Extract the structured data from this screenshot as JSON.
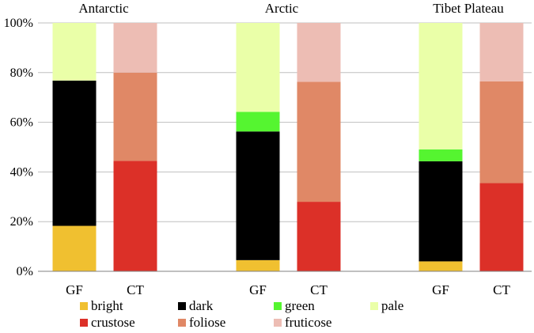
{
  "chart_data": {
    "type": "bar",
    "stacked": true,
    "normalized": true,
    "ylim": [
      0,
      100
    ],
    "yticks": [
      0,
      20,
      40,
      60,
      80,
      100
    ],
    "ytick_suffix": "%",
    "grid": true,
    "legend_position": "bottom",
    "groups": [
      {
        "title": "Antarctic",
        "bars": [
          {
            "label": "GF",
            "segments": [
              {
                "series": "bright",
                "value": 18.3
              },
              {
                "series": "dark",
                "value": 58.5
              },
              {
                "series": "green",
                "value": 0
              },
              {
                "series": "pale",
                "value": 23.2
              }
            ]
          },
          {
            "label": "CT",
            "segments": [
              {
                "series": "crustose",
                "value": 44.5
              },
              {
                "series": "foliose",
                "value": 35.5
              },
              {
                "series": "fruticose",
                "value": 20.0
              }
            ]
          }
        ]
      },
      {
        "title": "Arctic",
        "bars": [
          {
            "label": "GF",
            "segments": [
              {
                "series": "bright",
                "value": 4.5
              },
              {
                "series": "dark",
                "value": 51.8
              },
              {
                "series": "green",
                "value": 7.9
              },
              {
                "series": "pale",
                "value": 35.8
              }
            ]
          },
          {
            "label": "CT",
            "segments": [
              {
                "series": "crustose",
                "value": 28.0
              },
              {
                "series": "foliose",
                "value": 48.3
              },
              {
                "series": "fruticose",
                "value": 23.7
              }
            ]
          }
        ]
      },
      {
        "title": "Tibet Plateau",
        "bars": [
          {
            "label": "GF",
            "segments": [
              {
                "series": "bright",
                "value": 4.0
              },
              {
                "series": "dark",
                "value": 40.3
              },
              {
                "series": "green",
                "value": 4.8
              },
              {
                "series": "pale",
                "value": 50.9
              }
            ]
          },
          {
            "label": "CT",
            "segments": [
              {
                "series": "crustose",
                "value": 35.5
              },
              {
                "series": "foliose",
                "value": 41.0
              },
              {
                "series": "fruticose",
                "value": 23.5
              }
            ]
          }
        ]
      }
    ],
    "series": [
      {
        "name": "bright",
        "color": "#F0C030"
      },
      {
        "name": "dark",
        "color": "#000000"
      },
      {
        "name": "green",
        "color": "#55F530"
      },
      {
        "name": "pale",
        "color": "#EAFFA8"
      },
      {
        "name": "crustose",
        "color": "#DC3028"
      },
      {
        "name": "foliose",
        "color": "#E08866"
      },
      {
        "name": "fruticose",
        "color": "#EDBDB4"
      }
    ],
    "gridColor": "#BFBFBF",
    "axisColor": "#808080"
  }
}
